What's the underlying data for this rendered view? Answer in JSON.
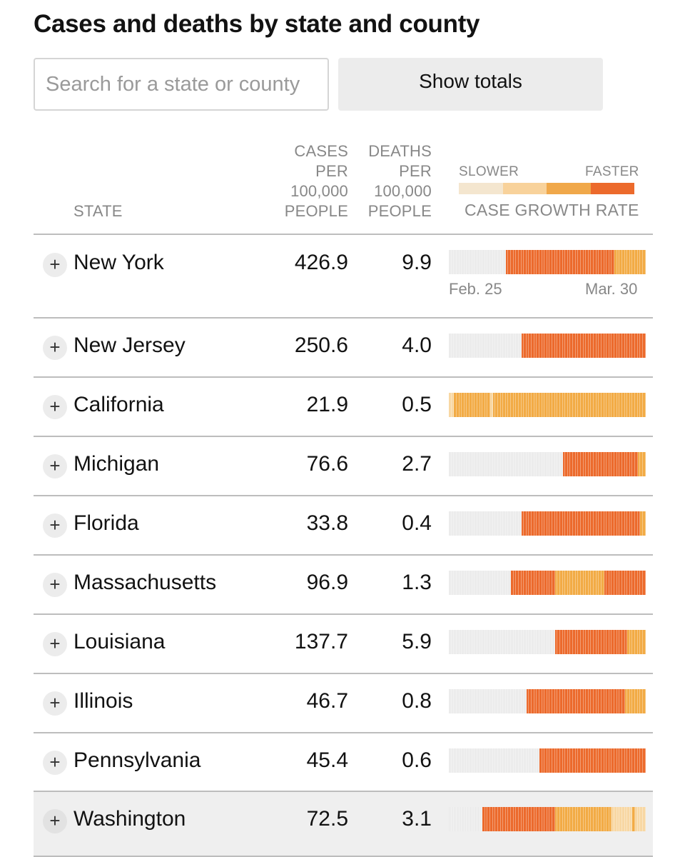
{
  "title": "Cases and deaths by state and county",
  "search": {
    "placeholder": "Search for a state or county"
  },
  "totals_button": "Show totals",
  "headers": {
    "state": "STATE",
    "cases_lines": [
      "CASES",
      "PER",
      "100,000",
      "PEOPLE"
    ],
    "deaths_lines": [
      "DEATHS",
      "PER",
      "100,000",
      "PEOPLE"
    ]
  },
  "legend": {
    "slower": "SLOWER",
    "faster": "FASTER",
    "title": "CASE GROWTH RATE",
    "colors": [
      "#f4e6cf",
      "#f8d29b",
      "#f0a84a",
      "#ec6a2c"
    ]
  },
  "colors": {
    "none": "#ececec",
    "level1": "#f8d7a3",
    "level2": "#f2ab45",
    "level3": "#ec6a2c"
  },
  "sparkline_dates": {
    "start": "Feb. 25",
    "end": "Mar. 30"
  },
  "rows": [
    {
      "name": "New York",
      "cases": "426.9",
      "deaths": "9.9",
      "growth": "0000000000000000000000333333333333333333333333333333333333333333222222222222"
    },
    {
      "name": "New Jersey",
      "cases": "250.6",
      "deaths": "4.0",
      "growth": "0000000000000000000000000000333333333333333333333333333333333333333333333333"
    },
    {
      "name": "California",
      "cases": "21.9",
      "deaths": "0.5",
      "growth": "1122222222222222122222222222222222222222222222222222222222222222222222222222"
    },
    {
      "name": "Michigan",
      "cases": "76.6",
      "deaths": "2.7",
      "growth": "0000000000000000000000000000000000000000000033333333333333333333333333333222"
    },
    {
      "name": "Florida",
      "cases": "33.8",
      "deaths": "0.4",
      "growth": "0000000000000000000000000000333333333333333333333333333333333333333333333322"
    },
    {
      "name": "Massachusetts",
      "cases": "96.9",
      "deaths": "1.3",
      "growth": "0000000000000000000000003333333333333333322222222222222222223333333333333333"
    },
    {
      "name": "Louisiana",
      "cases": "137.7",
      "deaths": "5.9",
      "growth": "0000000000000000000000000000000000000000033333333333333333333333333332222222"
    },
    {
      "name": "Illinois",
      "cases": "46.7",
      "deaths": "0.8",
      "growth": "0000000000000000000000000000003333333333333333333333333333333333333322222222"
    },
    {
      "name": "Pennsylvania",
      "cases": "45.4",
      "deaths": "0.6",
      "growth": "0000000000000000000000000000000000033333333333333333333333333333333333333333"
    },
    {
      "name": "Washington",
      "cases": "72.5",
      "deaths": "3.1",
      "growth": "0000000000000333333333333333333333333333322222222222222222222221111111121111"
    }
  ]
}
